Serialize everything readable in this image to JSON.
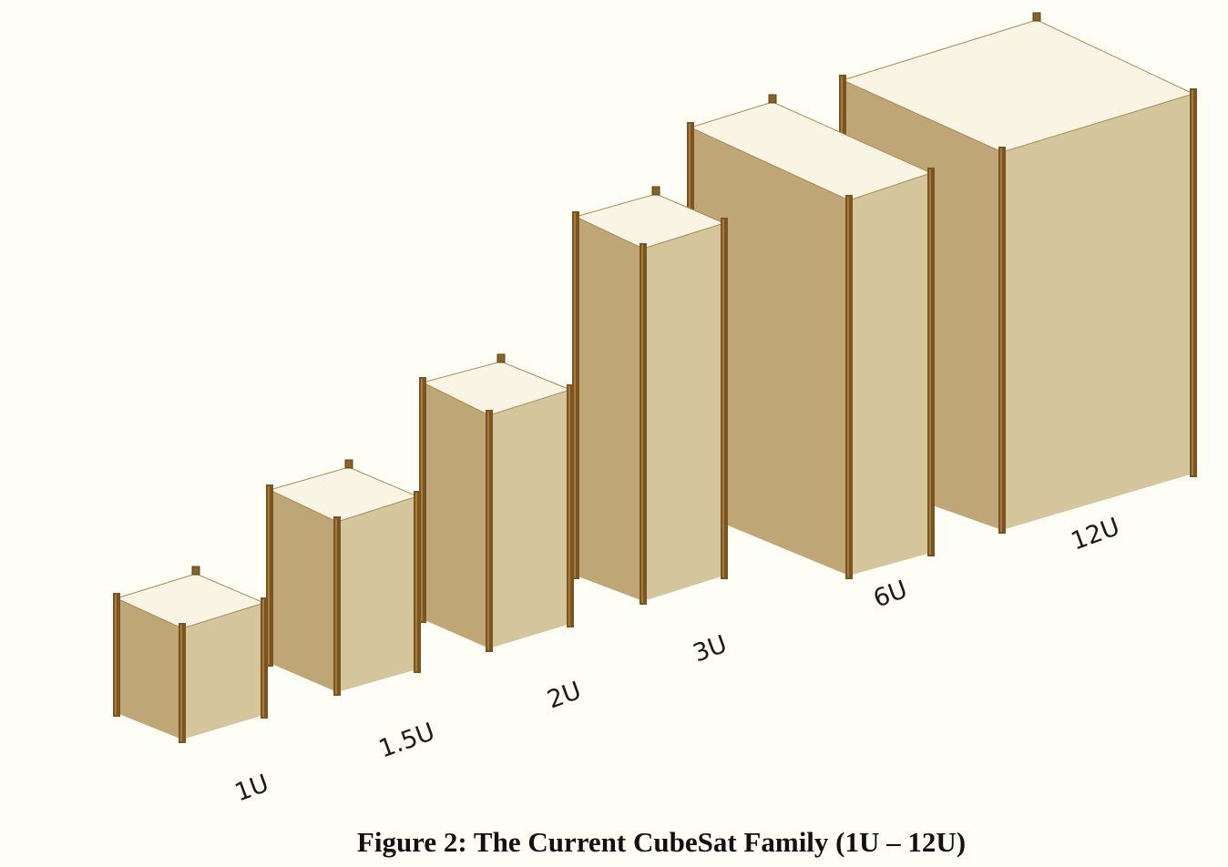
{
  "figure": {
    "labels": [
      "1U",
      "1.5U",
      "2U",
      "3U",
      "6U",
      "12U"
    ],
    "caption": "Figure 2: The Current CubeSat Family (1U – 12U)"
  }
}
